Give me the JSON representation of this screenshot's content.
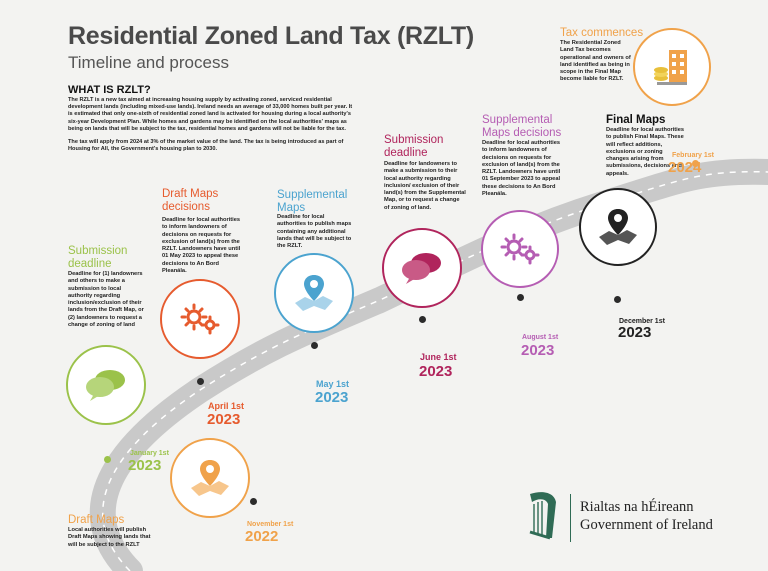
{
  "header": {
    "title": "Residential Zoned Land Tax (RZLT)",
    "subtitle": "Timeline and process"
  },
  "intro": {
    "heading": "WHAT IS RZLT?",
    "paragraph1": "The RZLT is a new tax aimed at increasing housing supply by activating zoned, serviced residential development lands (including mixed-use lands). Ireland needs an average of 33,000 homes built per year. It is estimated that only one-sixth of residential zoned land is activated for housing during a local authority's six-year Development Plan. While homes and gardens may be identified on the local authorities' maps as being on lands that will be subject to the tax, residential homes and gardens will not be liable for the tax.",
    "paragraph2": "The tax will apply from 2024 at 3% of the market value of the land. The tax is being introduced as part of Housing for All, the Government's housing plan to 2030."
  },
  "milestones": {
    "draft_maps": {
      "title": "Draft Maps",
      "desc": "Local authorities will publish Draft Maps showing lands that will be subject to the RZLT",
      "date": "November 1st",
      "year": "2022",
      "color": "#f0a24a",
      "icon": "map-pin-icon"
    },
    "submission_1": {
      "title": "Submission deadline",
      "desc": "Deadline for (1) landowners and others to make a submission to local authority regarding inclusion/exclusion of their lands from the Draft Map, or (2) landowners to request a change of zoning of land",
      "date": "January 1st",
      "year": "2023",
      "color": "#9bc24a",
      "icon": "chat-bubbles-icon"
    },
    "draft_decisions": {
      "title": "Draft Maps decisions",
      "desc": "Deadline for local authorities to inform landowners of decisions on requests for exclusion of land(s) from the RZLT. Landowners have until 01 May 2023 to appeal these decisions to An Bord Pleanála.",
      "date": "April 1st",
      "year": "2023",
      "color": "#e65b2e",
      "icon": "gears-icon"
    },
    "supplemental_maps": {
      "title": "Supplemental Maps",
      "desc": "Deadline for local authorities to publish maps containing any additional lands that will be subject to the RZLT.",
      "date": "May 1st",
      "year": "2023",
      "color": "#4ba3cf",
      "icon": "map-pin-icon"
    },
    "submission_2": {
      "title": "Submission deadline",
      "desc": "Deadline for landowners to make a submission to their local authority regarding inclusion/ exclusion of their land(s) from the Supplemental Map, or to request a change of zoning of land.",
      "date": "June 1st",
      "year": "2023",
      "color": "#b0245c",
      "icon": "chat-bubbles-icon"
    },
    "supplemental_decisions": {
      "title": "Supplemental Maps decisions",
      "desc": "Deadline for local authorities to inform landowners of decisions on requests for exclusion of land(s) from the RZLT. Landowners have until 01 September 2023 to appeal these decisions to An Bord Pleanála.",
      "date": "August 1st",
      "year": "2023",
      "color": "#b55db3",
      "icon": "gears-icon"
    },
    "final_maps": {
      "title": "Final Maps",
      "desc": "Deadline for local authorities to publish Final Maps. These will reflect additions, exclusions or zoning changes arising from submissions, decisions and appeals.",
      "date": "December 1st",
      "year": "2023",
      "color": "#222222",
      "icon": "map-pin-icon"
    },
    "tax_commences": {
      "title": "Tax commences",
      "desc": "The Residential Zoned Land Tax becomes operational and owners of land identified as being in scope in the Final Map become liable for RZLT.",
      "date": "February 1st",
      "year": "2024",
      "color": "#f0a24a",
      "icon": "building-coins-icon"
    }
  },
  "footer": {
    "gov_name_irish": "Rialtas na hÉireann",
    "gov_name_english": "Government of Ireland",
    "logo_icon": "harp-icon",
    "accent": "#2f6b55"
  }
}
